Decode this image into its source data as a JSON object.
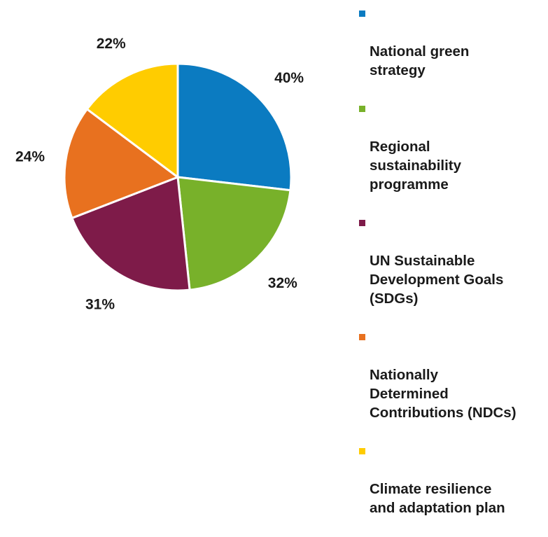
{
  "colors": {
    "blue": "#0B7BC1",
    "green": "#78B12A",
    "maroon": "#7E1B49",
    "orange": "#E8711F",
    "yellow": "#FFCC00",
    "label_text": "#1a1a1a",
    "slice_border": "#ffffff"
  },
  "chart_data": {
    "type": "pie",
    "title": "",
    "slices": [
      {
        "name": "National green\nstrategy",
        "value": 40,
        "label": "40%",
        "color": "#0B7BC1"
      },
      {
        "name": "Regional\nsustainability\nprogramme",
        "value": 32,
        "label": "32%",
        "color": "#78B12A"
      },
      {
        "name": "UN Sustainable\nDevelopment Goals\n(SDGs)",
        "value": 31,
        "label": "31%",
        "color": "#7E1B49"
      },
      {
        "name": "Nationally\nDetermined\nContributions (NDCs)",
        "value": 24,
        "label": "24%",
        "color": "#E8711F"
      },
      {
        "name": "Climate resilience\nand adaptation plan",
        "value": 22,
        "label": "22%",
        "color": "#FFCC00"
      }
    ],
    "legend_position": "right"
  }
}
